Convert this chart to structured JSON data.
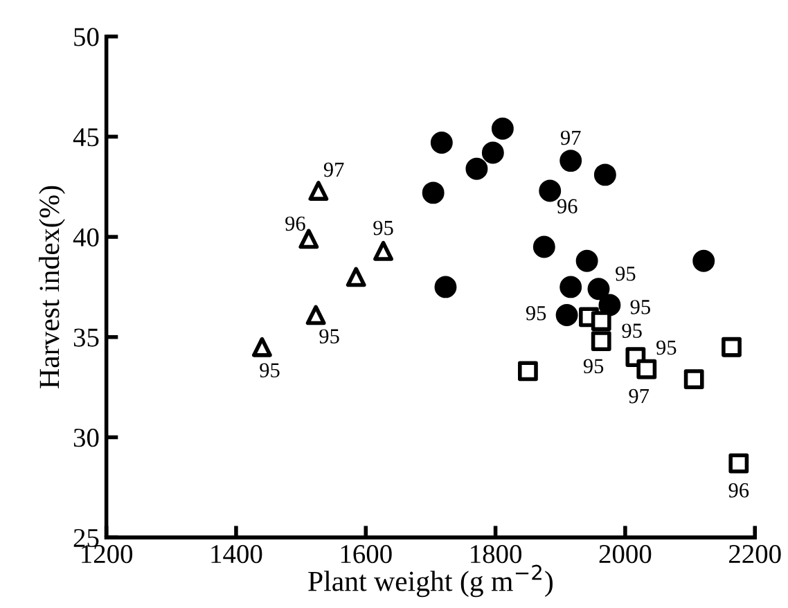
{
  "chart_data": {
    "type": "scatter",
    "xlabel": "Plant weight (g m$^{−2}$)",
    "ylabel": "Harvest index(%)",
    "xlim": [
      1200,
      2200
    ],
    "ylim": [
      25,
      50
    ],
    "xticks": [
      1200,
      1400,
      1600,
      1800,
      2000,
      2200
    ],
    "yticks": [
      25,
      30,
      35,
      40,
      45,
      50
    ],
    "grid": false,
    "legend": false,
    "series": [
      {
        "marker": "triangle",
        "color": "#000000",
        "x": [
          1440,
          1523,
          1585,
          1627,
          1512,
          1527
        ],
        "values": [
          34.5,
          36.1,
          38.0,
          39.3,
          39.9,
          42.3
        ]
      },
      {
        "marker": "circle",
        "color": "#000000",
        "x": [
          1717,
          1704,
          1723,
          1811,
          1796,
          1771,
          1916,
          1969,
          1884,
          1875,
          1941,
          2121,
          1916,
          1959,
          1976,
          1910
        ],
        "values": [
          44.7,
          42.2,
          37.5,
          45.4,
          44.2,
          43.4,
          43.8,
          43.1,
          42.3,
          39.5,
          38.8,
          38.8,
          37.5,
          37.4,
          36.6,
          36.1
        ]
      },
      {
        "marker": "square",
        "color": "#000000",
        "x": [
          1944,
          1963,
          1963,
          1850,
          2016,
          2033,
          2106,
          2164,
          2175
        ],
        "values": [
          36.0,
          35.8,
          34.8,
          33.3,
          34.0,
          33.4,
          32.9,
          34.5,
          28.7
        ]
      }
    ],
    "annotations": [
      {
        "text": "97",
        "x": 1527,
        "y": 42.3
      },
      {
        "text": "96",
        "x": 1512,
        "y": 39.9
      },
      {
        "text": "95",
        "x": 1627,
        "y": 39.3
      },
      {
        "text": "95",
        "x": 1523,
        "y": 36.1
      },
      {
        "text": "95",
        "x": 1440,
        "y": 34.5
      },
      {
        "text": "97",
        "x": 1916,
        "y": 43.8
      },
      {
        "text": "96",
        "x": 1884,
        "y": 42.3
      },
      {
        "text": "95",
        "x": 1959,
        "y": 37.4
      },
      {
        "text": "95",
        "x": 1976,
        "y": 36.6
      },
      {
        "text": "95",
        "x": 1910,
        "y": 36.1
      },
      {
        "text": "95",
        "x": 1963,
        "y": 35.8
      },
      {
        "text": "95",
        "x": 1963,
        "y": 34.8
      },
      {
        "text": "95",
        "x": 2016,
        "y": 34.0
      },
      {
        "text": "97",
        "x": 2033,
        "y": 33.4
      },
      {
        "text": "96",
        "x": 2175,
        "y": 28.7
      }
    ]
  }
}
